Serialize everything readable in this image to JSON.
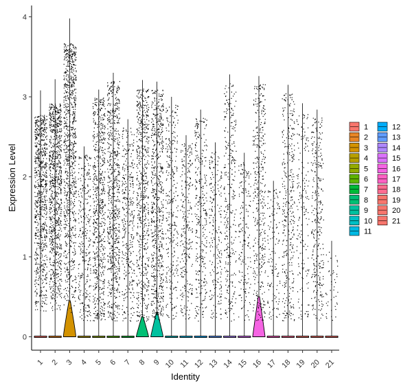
{
  "chart_data": {
    "type": "violin",
    "xlabel": "Identity",
    "ylabel": "Expression Level",
    "ylim": [
      0,
      4.2
    ],
    "y_ticks": [
      0,
      1,
      2,
      3,
      4
    ],
    "categories": [
      "1",
      "2",
      "3",
      "4",
      "5",
      "6",
      "7",
      "8",
      "9",
      "10",
      "11",
      "12",
      "13",
      "14",
      "15",
      "16",
      "17",
      "18",
      "19",
      "20",
      "21"
    ],
    "colors": [
      "#F8766D",
      "#E88526",
      "#D39200",
      "#B79F00",
      "#93AA00",
      "#5EB300",
      "#00BA38",
      "#00BF74",
      "#00C19F",
      "#00BFC4",
      "#00B9E3",
      "#00ADFA",
      "#619CFF",
      "#AE87FF",
      "#DB72FB",
      "#F564E3",
      "#FF61C3",
      "#FF6C91",
      "#F8766D",
      "#F8766D",
      "#F8766D"
    ],
    "max_values": [
      3.08,
      3.22,
      3.98,
      2.38,
      3.09,
      3.3,
      2.72,
      3.21,
      3.19,
      3.0,
      2.52,
      2.84,
      2.43,
      3.28,
      2.3,
      3.26,
      1.95,
      3.15,
      2.92,
      2.84,
      1.2
    ],
    "point_density": [
      0.9,
      1.0,
      1.0,
      0.35,
      0.75,
      0.8,
      0.4,
      0.7,
      0.75,
      0.35,
      0.3,
      0.35,
      0.25,
      0.35,
      0.2,
      0.45,
      0.15,
      0.4,
      0.2,
      0.35,
      0.05
    ],
    "violin_peak_width": [
      0.0,
      0.0,
      0.45,
      0.0,
      0.0,
      0.0,
      0.0,
      0.42,
      0.42,
      0.0,
      0.0,
      0.0,
      0.0,
      0.0,
      0.0,
      0.42,
      0.0,
      0.0,
      0.0,
      0.0,
      0.0
    ],
    "violin_peak_height": [
      0,
      0,
      0.45,
      0,
      0,
      0,
      0,
      0.25,
      0.3,
      0,
      0,
      0,
      0,
      0,
      0,
      0.5,
      0,
      0,
      0,
      0,
      0
    ],
    "legend": {
      "position": "right",
      "columns": 2,
      "entries": [
        "1",
        "2",
        "3",
        "4",
        "5",
        "6",
        "7",
        "8",
        "9",
        "10",
        "11",
        "12",
        "13",
        "14",
        "15",
        "16",
        "17",
        "18",
        "19",
        "20",
        "21"
      ]
    }
  }
}
